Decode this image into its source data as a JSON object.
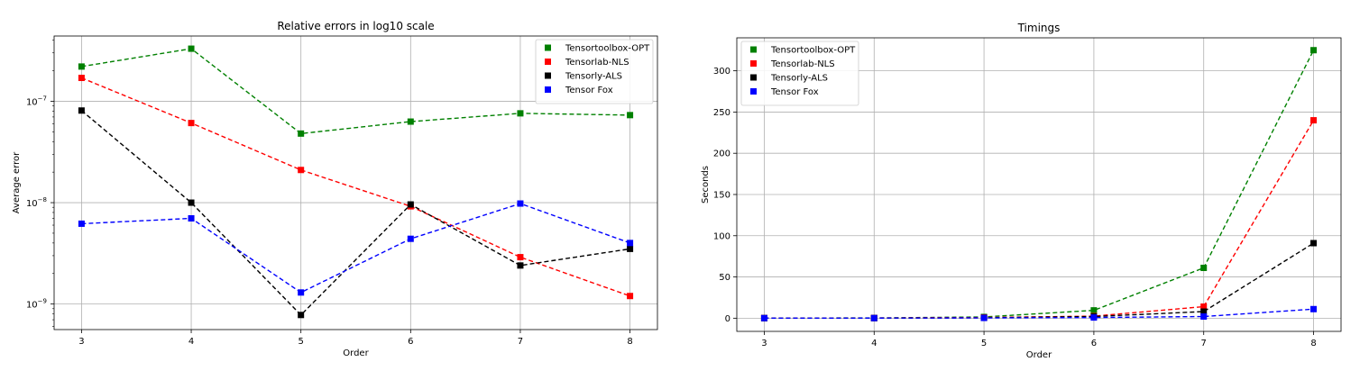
{
  "chart_data": [
    {
      "type": "line",
      "title": "Relative errors in log10 scale",
      "xlabel": "Order",
      "ylabel": "Average error",
      "yscale": "log",
      "x": [
        3,
        4,
        5,
        6,
        7,
        8
      ],
      "xlim": [
        2.75,
        8.25
      ],
      "ylim": [
        5.6e-10,
        4.4e-07
      ],
      "yticks": [
        1e-09,
        1e-08,
        1e-07
      ],
      "ytick_labels": [
        "10^-9",
        "10^-8",
        "10^-7"
      ],
      "grid": true,
      "legend_position": "top-right",
      "series": [
        {
          "name": "Tensortoolbox-OPT",
          "color": "#008000",
          "values": [
            2.2e-07,
            3.3e-07,
            4.8e-08,
            6.3e-08,
            7.6e-08,
            7.3e-08
          ]
        },
        {
          "name": "Tensorlab-NLS",
          "color": "#ff0000",
          "values": [
            1.7e-07,
            6.1e-08,
            2.1e-08,
            9.2e-09,
            2.9e-09,
            1.2e-09
          ]
        },
        {
          "name": "Tensorly-ALS",
          "color": "#000000",
          "values": [
            8.1e-08,
            1e-08,
            7.8e-10,
            9.6e-09,
            2.4e-09,
            3.5e-09
          ]
        },
        {
          "name": "Tensor Fox",
          "color": "#0000ff",
          "values": [
            6.2e-09,
            7e-09,
            1.3e-09,
            4.4e-09,
            9.8e-09,
            4e-09
          ]
        }
      ]
    },
    {
      "type": "line",
      "title": "Timings",
      "xlabel": "Order",
      "ylabel": "Seconds",
      "yscale": "linear",
      "x": [
        3,
        4,
        5,
        6,
        7,
        8
      ],
      "xlim": [
        2.75,
        8.25
      ],
      "ylim": [
        -16,
        340
      ],
      "yticks": [
        0,
        50,
        100,
        150,
        200,
        250,
        300
      ],
      "grid": true,
      "legend_position": "top-left",
      "series": [
        {
          "name": "Tensortoolbox-OPT",
          "color": "#008000",
          "values": [
            0.1,
            0.3,
            1.5,
            9.5,
            61,
            325
          ]
        },
        {
          "name": "Tensorlab-NLS",
          "color": "#ff0000",
          "values": [
            0.1,
            0.2,
            0.8,
            2.5,
            14,
            240
          ]
        },
        {
          "name": "Tensorly-ALS",
          "color": "#000000",
          "values": [
            0.05,
            0.1,
            0.5,
            2,
            8,
            91
          ]
        },
        {
          "name": "Tensor Fox",
          "color": "#0000ff",
          "values": [
            0.05,
            0.1,
            0.3,
            0.8,
            2,
            11
          ]
        }
      ]
    }
  ]
}
